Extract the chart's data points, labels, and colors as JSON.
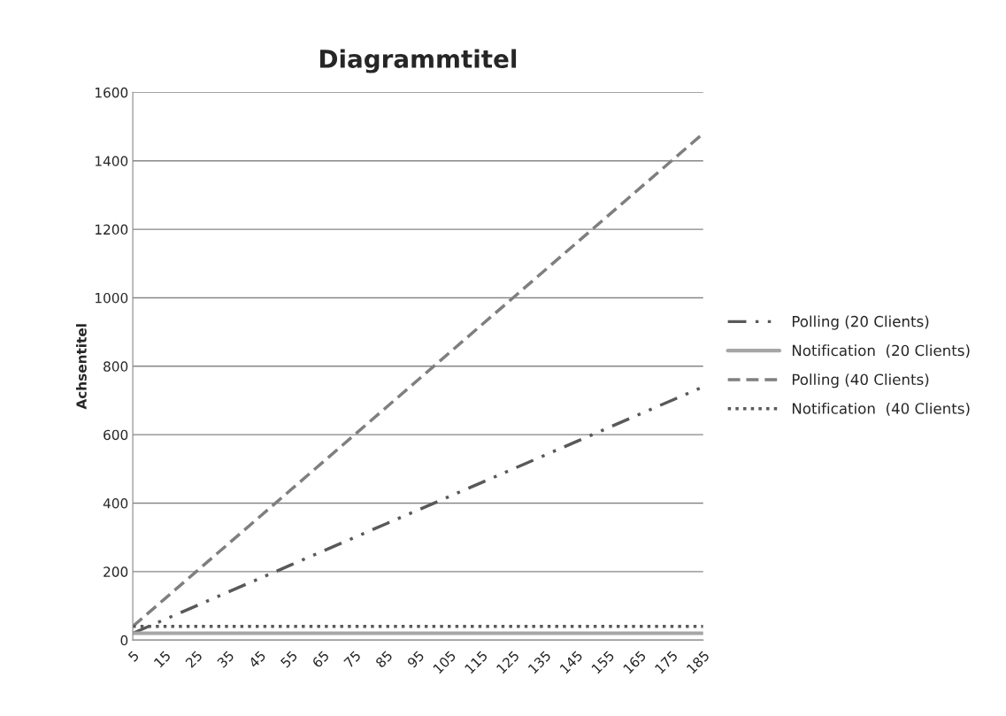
{
  "chart_data": {
    "type": "line",
    "title": "Diagrammtitel",
    "ylabel": "Achsentitel",
    "categories": [
      "5",
      "15",
      "25",
      "35",
      "45",
      "55",
      "65",
      "75",
      "85",
      "95",
      "105",
      "115",
      "125",
      "135",
      "145",
      "155",
      "165",
      "175",
      "185"
    ],
    "series": [
      {
        "name": "Polling (20 Clients)",
        "color": "#595959",
        "line_style": "dashdotdot",
        "values": [
          20,
          60,
          100,
          140,
          180,
          220,
          260,
          300,
          340,
          380,
          420,
          460,
          500,
          540,
          580,
          620,
          660,
          700,
          740
        ]
      },
      {
        "name": "Notification  (20 Clients)",
        "color": "#a6a6a6",
        "line_style": "solid",
        "values": [
          20,
          20,
          20,
          20,
          20,
          20,
          20,
          20,
          20,
          20,
          20,
          20,
          20,
          20,
          20,
          20,
          20,
          20,
          20
        ]
      },
      {
        "name": "Polling (40 Clients)",
        "color": "#7f7f7f",
        "line_style": "dashed",
        "values": [
          40,
          120,
          200,
          280,
          360,
          440,
          520,
          600,
          680,
          760,
          840,
          920,
          1000,
          1080,
          1160,
          1240,
          1320,
          1400,
          1480
        ]
      },
      {
        "name": "Notification  (40 Clients)",
        "color": "#595959",
        "line_style": "dotted",
        "values": [
          40,
          40,
          40,
          40,
          40,
          40,
          40,
          40,
          40,
          40,
          40,
          40,
          40,
          40,
          40,
          40,
          40,
          40,
          40
        ]
      }
    ],
    "ylim": [
      0,
      1600
    ],
    "yticks": [
      0,
      200,
      400,
      600,
      800,
      1000,
      1200,
      1400,
      1600
    ],
    "grid": "y",
    "legend": "right",
    "marker": "none"
  }
}
